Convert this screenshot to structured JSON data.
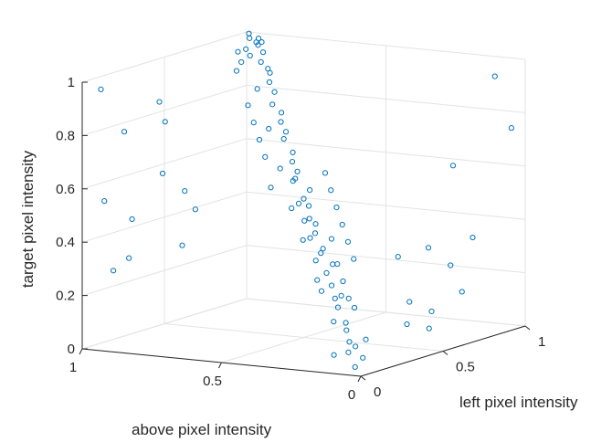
{
  "chart_data": {
    "type": "scatter",
    "projection": "3d",
    "grid": true,
    "marker": "open-circle",
    "color": "#0072BD",
    "axes": {
      "x": {
        "label": "left pixel intensity",
        "lim": [
          0,
          1
        ],
        "ticks": [
          0,
          0.5,
          1
        ],
        "tick_labels": [
          "0",
          "0.5",
          "1"
        ]
      },
      "y": {
        "label": "above pixel intensity",
        "lim": [
          0,
          1
        ],
        "ticks": [
          0,
          0.5,
          1
        ],
        "tick_labels": [
          "0",
          "0.5",
          "1"
        ]
      },
      "z": {
        "label": "target pixel intensity",
        "lim": [
          0,
          1
        ],
        "ticks": [
          0,
          0.2,
          0.4,
          0.6,
          0.8,
          1
        ],
        "tick_labels": [
          "0",
          "0.2",
          "0.4",
          "0.6",
          "0.8",
          "1"
        ]
      }
    },
    "points": [
      [
        0.05,
        0.05,
        0.02
      ],
      [
        0.08,
        0.04,
        0.05
      ],
      [
        0.06,
        0.08,
        0.07
      ],
      [
        0.1,
        0.1,
        0.1
      ],
      [
        0.12,
        0.09,
        0.08
      ],
      [
        0.04,
        0.12,
        0.06
      ],
      [
        0.15,
        0.14,
        0.13
      ],
      [
        0.18,
        0.16,
        0.15
      ],
      [
        0.2,
        0.2,
        0.2
      ],
      [
        0.14,
        0.18,
        0.16
      ],
      [
        0.22,
        0.2,
        0.24
      ],
      [
        0.25,
        0.24,
        0.22
      ],
      [
        0.28,
        0.27,
        0.26
      ],
      [
        0.3,
        0.3,
        0.3
      ],
      [
        0.26,
        0.31,
        0.28
      ],
      [
        0.32,
        0.29,
        0.33
      ],
      [
        0.35,
        0.35,
        0.36
      ],
      [
        0.38,
        0.36,
        0.37
      ],
      [
        0.4,
        0.4,
        0.42
      ],
      [
        0.36,
        0.42,
        0.4
      ],
      [
        0.42,
        0.41,
        0.45
      ],
      [
        0.45,
        0.45,
        0.46
      ],
      [
        0.48,
        0.47,
        0.5
      ],
      [
        0.5,
        0.5,
        0.52
      ],
      [
        0.46,
        0.52,
        0.49
      ],
      [
        0.52,
        0.49,
        0.55
      ],
      [
        0.55,
        0.56,
        0.58
      ],
      [
        0.58,
        0.57,
        0.6
      ],
      [
        0.6,
        0.6,
        0.63
      ],
      [
        0.56,
        0.62,
        0.61
      ],
      [
        0.62,
        0.61,
        0.66
      ],
      [
        0.65,
        0.66,
        0.7
      ],
      [
        0.68,
        0.67,
        0.72
      ],
      [
        0.7,
        0.7,
        0.75
      ],
      [
        0.66,
        0.72,
        0.73
      ],
      [
        0.72,
        0.71,
        0.78
      ],
      [
        0.75,
        0.76,
        0.8
      ],
      [
        0.78,
        0.77,
        0.84
      ],
      [
        0.8,
        0.8,
        0.87
      ],
      [
        0.76,
        0.82,
        0.85
      ],
      [
        0.82,
        0.81,
        0.9
      ],
      [
        0.85,
        0.86,
        0.93
      ],
      [
        0.88,
        0.87,
        0.96
      ],
      [
        0.9,
        0.9,
        0.98
      ],
      [
        0.86,
        0.92,
        0.97
      ],
      [
        0.92,
        0.91,
        1.0
      ],
      [
        0.95,
        0.96,
        0.99
      ],
      [
        0.98,
        0.98,
        1.0
      ],
      [
        0.02,
        0.9,
        0.3
      ],
      [
        0.05,
        0.95,
        0.55
      ],
      [
        0.1,
        0.88,
        0.48
      ],
      [
        0.03,
        0.85,
        0.35
      ],
      [
        0.08,
        0.98,
        0.96
      ],
      [
        0.12,
        0.92,
        0.8
      ],
      [
        0.15,
        0.8,
        0.65
      ],
      [
        0.2,
        0.75,
        0.58
      ],
      [
        0.18,
        0.7,
        0.52
      ],
      [
        0.25,
        0.85,
        0.82
      ],
      [
        0.1,
        0.7,
        0.4
      ],
      [
        0.3,
        0.9,
        0.88
      ],
      [
        0.9,
        0.05,
        0.95
      ],
      [
        0.85,
        0.1,
        0.35
      ],
      [
        0.95,
        0.02,
        0.75
      ],
      [
        0.8,
        0.15,
        0.25
      ],
      [
        0.7,
        0.05,
        0.18
      ],
      [
        0.75,
        0.2,
        0.32
      ],
      [
        0.6,
        0.1,
        0.12
      ],
      [
        0.5,
        0.05,
        0.08
      ],
      [
        0.65,
        0.25,
        0.3
      ],
      [
        0.55,
        0.15,
        0.16
      ],
      [
        0.45,
        0.1,
        0.1
      ],
      [
        0.9,
        0.2,
        0.6
      ],
      [
        0.4,
        0.6,
        0.75
      ],
      [
        0.3,
        0.5,
        0.6
      ],
      [
        0.5,
        0.7,
        0.85
      ],
      [
        0.6,
        0.8,
        0.95
      ],
      [
        0.35,
        0.55,
        0.7
      ],
      [
        0.45,
        0.65,
        0.8
      ],
      [
        0.7,
        0.5,
        0.45
      ],
      [
        0.6,
        0.4,
        0.35
      ],
      [
        0.8,
        0.6,
        0.55
      ],
      [
        0.75,
        0.55,
        0.5
      ],
      [
        0.65,
        0.45,
        0.4
      ],
      [
        0.55,
        0.35,
        0.3
      ],
      [
        0.2,
        0.3,
        0.45
      ],
      [
        0.25,
        0.35,
        0.5
      ],
      [
        0.15,
        0.25,
        0.38
      ],
      [
        0.3,
        0.4,
        0.55
      ],
      [
        0.1,
        0.2,
        0.28
      ],
      [
        0.35,
        0.45,
        0.62
      ],
      [
        0.3,
        0.2,
        0.18
      ],
      [
        0.4,
        0.3,
        0.25
      ],
      [
        0.2,
        0.1,
        0.09
      ],
      [
        0.5,
        0.4,
        0.38
      ],
      [
        0.35,
        0.25,
        0.2
      ],
      [
        0.45,
        0.35,
        0.3
      ],
      [
        0.97,
        0.97,
        0.92
      ],
      [
        0.99,
        0.94,
        0.97
      ],
      [
        0.93,
        0.99,
        0.94
      ],
      [
        0.96,
        0.9,
        0.88
      ],
      [
        0.9,
        0.96,
        0.91
      ],
      [
        0.94,
        0.93,
        0.98
      ]
    ]
  }
}
